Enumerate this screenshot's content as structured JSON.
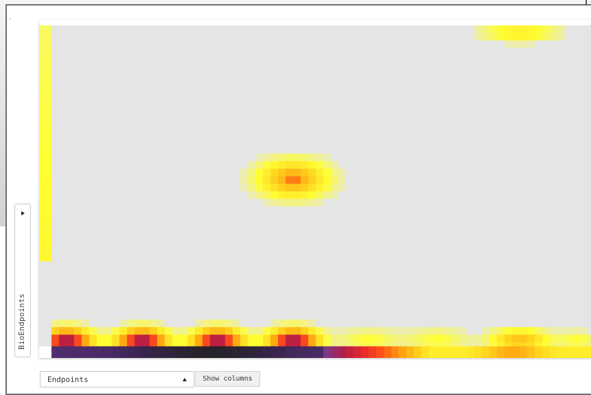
{
  "drawer": {
    "label": "BioEndpoints",
    "arrow_icon": "triangle-right-icon"
  },
  "endpoints_select": {
    "value": "Endpoints",
    "arrow_icon": "triangle-up-icon"
  },
  "show_columns": {
    "label": "Show columns"
  },
  "heatmap": {
    "colors": {
      "background": "#e5e5e5",
      "scale": [
        "#ffff33",
        "#ffd21e",
        "#ff9e10",
        "#ff5418",
        "#e8282e",
        "#b41e45",
        "#7a3a8a",
        "#57307a",
        "#38244c",
        "#232323"
      ]
    },
    "hotspots": [
      {
        "area": "upper-right",
        "intensity": 0.12
      },
      {
        "area": "center",
        "intensity": 0.28
      },
      {
        "area": "bottom-left-band",
        "intensity": 0.95
      },
      {
        "area": "bottom-right-band",
        "intensity": 0.45
      }
    ]
  }
}
